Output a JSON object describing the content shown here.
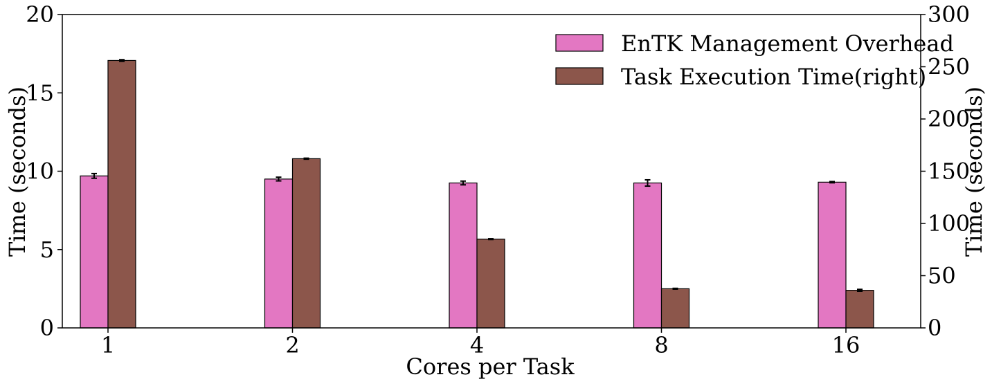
{
  "chart_data": {
    "type": "bar",
    "xlabel": "Cores per Task",
    "ylabel_left": "Time (seconds)",
    "ylabel_right": "Time (seconds)",
    "categories": [
      "1",
      "2",
      "4",
      "8",
      "16"
    ],
    "ylim_left": [
      0,
      20
    ],
    "ylim_right": [
      0,
      300
    ],
    "yticks_left": [
      0,
      5,
      10,
      15,
      20
    ],
    "yticks_right": [
      0,
      50,
      100,
      150,
      200,
      250,
      300
    ],
    "legend_position": "top-right",
    "grid": false,
    "series": [
      {
        "name": "EnTK Management Overhead",
        "axis": "left",
        "color": "#e377c2",
        "values": [
          9.7,
          9.5,
          9.25,
          9.25,
          9.3
        ],
        "errors": [
          0.15,
          0.12,
          0.12,
          0.2,
          0.04
        ]
      },
      {
        "name": "Task Execution Time(right)",
        "axis": "right",
        "color": "#8c564b",
        "values": [
          256,
          162,
          85,
          37.5,
          36
        ],
        "errors": [
          0.8,
          0.5,
          0.4,
          0.4,
          0.9
        ]
      }
    ]
  }
}
